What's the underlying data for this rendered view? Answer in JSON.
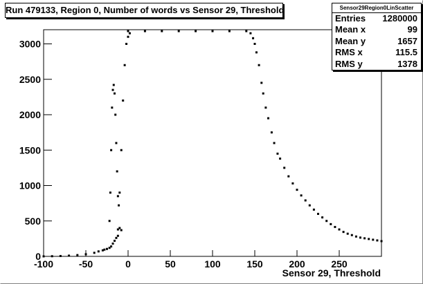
{
  "title": "Run 479133, Region 0, Number of words vs Sensor 29, Threshold",
  "stats": {
    "name": "Sensor29Region0LinScatter",
    "rows": [
      {
        "label": "Entries",
        "value": "1280000"
      },
      {
        "label": "Mean x",
        "value": "99"
      },
      {
        "label": "Mean y",
        "value": "1657"
      },
      {
        "label": "RMS x",
        "value": "115.5"
      },
      {
        "label": "RMS y",
        "value": "1378"
      }
    ]
  },
  "chart_data": {
    "type": "scatter",
    "xlabel": "Sensor 29, Threshold",
    "ylabel": "",
    "xlim": [
      -100,
      300
    ],
    "ylim": [
      0,
      3200
    ],
    "xticks": [
      "-100",
      "-50",
      "0",
      "50",
      "100",
      "150",
      "200",
      "250"
    ],
    "yticks": [
      "0",
      "500",
      "1000",
      "1500",
      "2000",
      "2500",
      "3000"
    ],
    "grid": false,
    "series": [
      {
        "points": [
          [
            -100,
            0
          ],
          [
            -90,
            2
          ],
          [
            -80,
            5
          ],
          [
            -70,
            10
          ],
          [
            -60,
            18
          ],
          [
            -50,
            30
          ],
          [
            -40,
            50
          ],
          [
            -35,
            70
          ],
          [
            -30,
            85
          ],
          [
            -28,
            95
          ],
          [
            -25,
            105
          ],
          [
            -22,
            120
          ],
          [
            -20,
            140
          ],
          [
            -18,
            180
          ],
          [
            -16,
            220
          ],
          [
            -14,
            260
          ],
          [
            -12,
            290
          ],
          [
            -22,
            500
          ],
          [
            -21,
            900
          ],
          [
            -20,
            1500
          ],
          [
            -19,
            2100
          ],
          [
            -18,
            2350
          ],
          [
            -17,
            2420
          ],
          [
            -16,
            2300
          ],
          [
            -15,
            2000
          ],
          [
            -14,
            1600
          ],
          [
            -13,
            1200
          ],
          [
            -12,
            850
          ],
          [
            -11,
            720
          ],
          [
            -10,
            900
          ],
          [
            -8,
            1500
          ],
          [
            -6,
            2200
          ],
          [
            -4,
            2700
          ],
          [
            -2,
            3000
          ],
          [
            0,
            3100
          ],
          [
            2,
            3150
          ],
          [
            -12,
            380
          ],
          [
            -10,
            400
          ],
          [
            -8,
            370
          ],
          [
            0,
            3180
          ],
          [
            20,
            3180
          ],
          [
            40,
            3180
          ],
          [
            60,
            3180
          ],
          [
            80,
            3180
          ],
          [
            100,
            3180
          ],
          [
            120,
            3180
          ],
          [
            140,
            3180
          ],
          [
            145,
            3150
          ],
          [
            148,
            3080
          ],
          [
            150,
            3000
          ],
          [
            152,
            2880
          ],
          [
            155,
            2700
          ],
          [
            158,
            2450
          ],
          [
            160,
            2300
          ],
          [
            163,
            2100
          ],
          [
            166,
            1950
          ],
          [
            170,
            1750
          ],
          [
            173,
            1600
          ],
          [
            177,
            1450
          ],
          [
            180,
            1380
          ],
          [
            185,
            1250
          ],
          [
            190,
            1130
          ],
          [
            195,
            1030
          ],
          [
            200,
            940
          ],
          [
            205,
            860
          ],
          [
            210,
            790
          ],
          [
            215,
            720
          ],
          [
            220,
            660
          ],
          [
            225,
            600
          ],
          [
            230,
            550
          ],
          [
            235,
            500
          ],
          [
            240,
            455
          ],
          [
            245,
            415
          ],
          [
            250,
            380
          ],
          [
            255,
            345
          ],
          [
            260,
            320
          ],
          [
            265,
            300
          ],
          [
            270,
            280
          ],
          [
            275,
            265
          ],
          [
            280,
            255
          ],
          [
            285,
            245
          ],
          [
            290,
            235
          ],
          [
            295,
            225
          ],
          [
            300,
            215
          ]
        ]
      }
    ]
  }
}
